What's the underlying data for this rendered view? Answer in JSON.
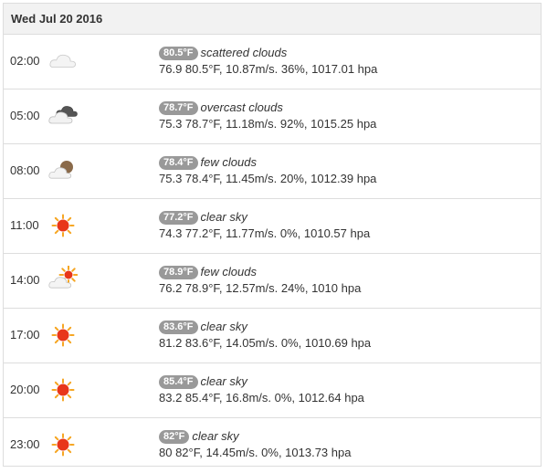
{
  "date": "Wed Jul 20 2016",
  "colors": {
    "badge": "#999999",
    "sun": "#e8361a",
    "sun_rays": "#f6a623",
    "cloud": "#dcdcdc",
    "dark_cloud": "#555555",
    "moon": "#8a6a4a"
  },
  "rows": [
    {
      "time": "02:00",
      "icon": "cloud-icon",
      "badge": "80.5°F",
      "desc": "scattered clouds",
      "details": "76.9 80.5°F, 10.87m/s. 36%, 1017.01 hpa"
    },
    {
      "time": "05:00",
      "icon": "overcast-night-icon",
      "badge": "78.7°F",
      "desc": "overcast clouds",
      "details": "75.3 78.7°F, 11.18m/s. 92%, 1015.25 hpa"
    },
    {
      "time": "08:00",
      "icon": "few-clouds-night-icon",
      "badge": "78.4°F",
      "desc": "few clouds",
      "details": "75.3 78.4°F, 11.45m/s. 20%, 1012.39 hpa"
    },
    {
      "time": "11:00",
      "icon": "sun-icon",
      "badge": "77.2°F",
      "desc": "clear sky",
      "details": "74.3 77.2°F, 11.77m/s. 0%, 1010.57 hpa"
    },
    {
      "time": "14:00",
      "icon": "few-clouds-day-icon",
      "badge": "78.9°F",
      "desc": "few clouds",
      "details": "76.2 78.9°F, 12.57m/s. 24%, 1010 hpa"
    },
    {
      "time": "17:00",
      "icon": "sun-icon",
      "badge": "83.6°F",
      "desc": "clear sky",
      "details": "81.2 83.6°F, 14.05m/s. 0%, 1010.69 hpa"
    },
    {
      "time": "20:00",
      "icon": "sun-icon",
      "badge": "85.4°F",
      "desc": "clear sky",
      "details": "83.2 85.4°F, 16.8m/s. 0%, 1012.64 hpa"
    },
    {
      "time": "23:00",
      "icon": "sun-icon",
      "badge": "82°F",
      "desc": "clear sky",
      "details": "80 82°F, 14.45m/s. 0%, 1013.73 hpa"
    }
  ]
}
